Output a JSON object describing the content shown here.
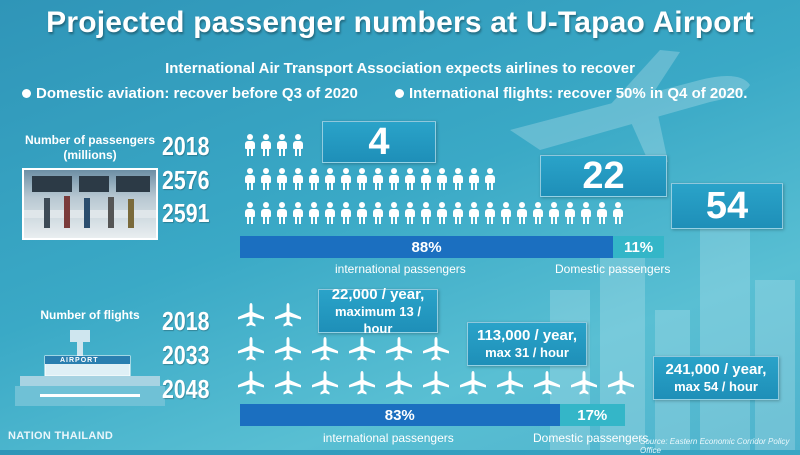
{
  "title": "Projected passenger numbers at U-Tapao Airport",
  "subtitle": "International Air Transport Association expects airlines to recover",
  "bullets": [
    "Domestic aviation: recover before Q3 of 2020",
    "International flights: recover 50% in Q4 of 2020."
  ],
  "passengers": {
    "label": "Number of passengers (millions)",
    "rows": [
      {
        "year": "2018",
        "value": "4",
        "icon_count": 4
      },
      {
        "year": "2576",
        "value": "22",
        "icon_count": 16
      },
      {
        "year": "2591",
        "value": "54",
        "icon_count": 24
      }
    ],
    "split": {
      "international_pct": "88%",
      "international_label": "international passengers",
      "international_fraction": 0.88,
      "domestic_pct": "11%",
      "domestic_label": "Domestic passengers"
    },
    "person_icon": "person-icon"
  },
  "flights": {
    "label": "Number of flights",
    "rows": [
      {
        "year": "2018",
        "line1": "22,000 / year,",
        "line2": "maximum 13 / hour",
        "icon_count": 2
      },
      {
        "year": "2033",
        "line1": "113,000 / year,",
        "line2": "max 31 / hour",
        "icon_count": 6
      },
      {
        "year": "2048",
        "line1": "241,000 / year,",
        "line2": "max 54 / hour",
        "icon_count": 11
      }
    ],
    "split": {
      "international_pct": "83%",
      "international_label": "international passengers",
      "international_fraction": 0.83,
      "domestic_pct": "17%",
      "domestic_label": "Domestic passengers"
    },
    "plane_icon": "airplane-icon"
  },
  "airport_sign": "AIRPORT",
  "source": "Source: Eastern Economic Corridor Policy Office",
  "logo": "NATION THAILAND",
  "colors": {
    "background": "#3aa9c6",
    "intl_bar": "#1b6fc0",
    "dom_bar": "#34b6c8",
    "box": "#1e8fb8"
  }
}
